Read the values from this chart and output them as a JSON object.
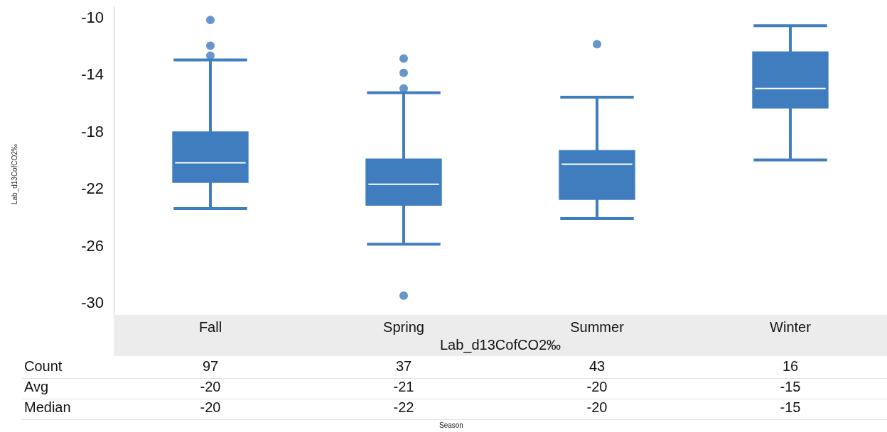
{
  "chart_data": {
    "type": "box",
    "categories": [
      "Fall",
      "Spring",
      "Summer",
      "Winter"
    ],
    "color": "#3f7dbf",
    "boxes": [
      {
        "low": -23.4,
        "q1": -21.5,
        "median": -20.2,
        "q3": -18.1,
        "high": -13.0,
        "outliers": [
          -10.2,
          -12.0,
          -12.7
        ]
      },
      {
        "low": -25.9,
        "q1": -23.1,
        "median": -21.7,
        "q3": -20.0,
        "high": -15.3,
        "outliers": [
          -12.9,
          -13.9,
          -15.0,
          -29.5
        ]
      },
      {
        "low": -24.1,
        "q1": -22.7,
        "median": -20.3,
        "q3": -19.4,
        "high": -15.6,
        "outliers": [
          -11.9
        ]
      },
      {
        "low": -20.0,
        "q1": -16.3,
        "median": -15.0,
        "q3": -12.5,
        "high": -10.6
      }
    ],
    "ylim": [
      -30.8,
      -9.3
    ],
    "yticks": [
      -10,
      -14,
      -18,
      -22,
      -26,
      -30
    ],
    "grid": false,
    "annotations": [
      "Lab_d13CofCO2‰",
      "Count",
      "97",
      "37",
      "43",
      "16",
      "Avg",
      "-20",
      "-21",
      "-20",
      "-15",
      "Median",
      "-20",
      "-22",
      "-20",
      "-15",
      "Season",
      "Lab_d13CofCO2‰"
    ]
  }
}
